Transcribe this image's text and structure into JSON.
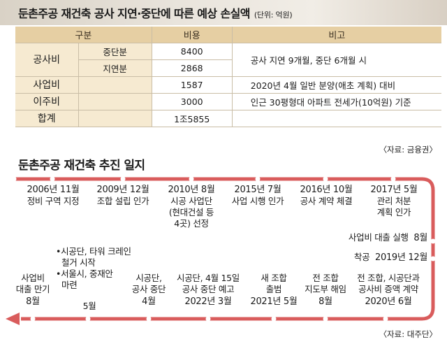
{
  "title": "둔촌주공 재건축 공사 지연·중단에 따른 예상 손실액",
  "unit": "(단위: 억원)",
  "table": {
    "headers": [
      "구분",
      "비용",
      "비고"
    ],
    "rows": {
      "construction_label": "공사비",
      "suspension_label": "중단분",
      "suspension_value": "8400",
      "delay_label": "지연분",
      "delay_value": "2868",
      "construction_note": "공사 지연 9개월, 중단 6개월 시",
      "business_label": "사업비",
      "business_value": "1587",
      "business_note": "2020년 4월 일반 분양(애초 계획) 대비",
      "relocation_label": "이주비",
      "relocation_value": "3000",
      "relocation_note": "인근 30평형대 아파트 전세가(10억원) 기준",
      "total_label": "합계",
      "total_value": "1조5855"
    }
  },
  "source1": "〈자료: 금융권〉",
  "timeline_title": "둔촌주공 재건축 추진 일지",
  "timeline": {
    "e1_date": "2006년 11월",
    "e1_text": "정비 구역 지정",
    "e2_date": "2009년 12월",
    "e2_text": "조합 설립 인가",
    "e3_date": "2010년 8월",
    "e3_l1": "시공 사업단",
    "e3_l2": "(현대건설 등",
    "e3_l3": "4곳) 선정",
    "e4_date": "2015년 7월",
    "e4_text": "사업 시행 인가",
    "e5_date": "2016년 10월",
    "e5_text": "공사 계약 체결",
    "e6_date": "2017년 5월",
    "e6_l1": "관리 처분",
    "e6_l2": "계획 인가",
    "e7_text": "사업비 대출 실행",
    "e7_date": "8월",
    "e8_text": "착공",
    "e8_date": "2019년 12월",
    "e9_l1": "전 조합, 시공단과",
    "e9_l2": "공사비 증액 계약",
    "e9_date": "2020년 6월",
    "e10_l1": "전 조합",
    "e10_l2": "지도부 해임",
    "e10_date": "8월",
    "e11_l1": "새 조합",
    "e11_l2": "출범",
    "e11_date": "2021년 5월",
    "e12_l1": "시공단, 4월 15일",
    "e12_l2": "공사 중단 예고",
    "e12_date": "2022년 3월",
    "e13_l1": "시공단,",
    "e13_l2": "공사 중단",
    "e13_date": "4월",
    "e14_b1a": "•시공단, 타워 크레인",
    "e14_b1b": "철거 시작",
    "e14_b2a": "•서울시, 중재안",
    "e14_b2b": "마련",
    "e14_date": "5월",
    "e15_l1": "사업비",
    "e15_l2": "대출 만기",
    "e15_date": "8월"
  },
  "source2": "〈자료: 대주단〉",
  "colors": {
    "header_bg": "#e6cfa3",
    "label_bg": "#f6ead1",
    "track": "#d95c5c",
    "rule": "#c9bda6"
  }
}
